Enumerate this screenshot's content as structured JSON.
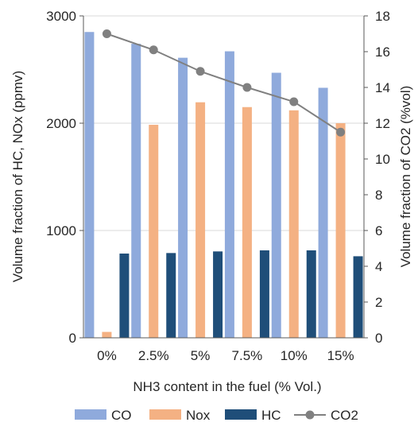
{
  "chart_data": {
    "type": "bar",
    "categories": [
      "0%",
      "2.5%",
      "5%",
      "7.5%",
      "10%",
      "15%"
    ],
    "series": [
      {
        "name": "CO",
        "type": "bar",
        "axis": "left",
        "color": "#8faadc",
        "values": [
          2850,
          2740,
          2610,
          2670,
          2470,
          2330
        ]
      },
      {
        "name": "Nox",
        "type": "bar",
        "axis": "left",
        "color": "#f4b183",
        "values": [
          55,
          1985,
          2195,
          2150,
          2120,
          2000
        ]
      },
      {
        "name": "HC",
        "type": "bar",
        "axis": "left",
        "color": "#1f4e79",
        "values": [
          785,
          790,
          805,
          815,
          815,
          760
        ]
      },
      {
        "name": "CO2",
        "type": "line",
        "axis": "right",
        "color": "#808080",
        "marker": "circle",
        "values": [
          17.0,
          16.1,
          14.9,
          14.0,
          13.2,
          11.5
        ]
      }
    ],
    "xlabel": "NH3 content in the fuel (% Vol.)",
    "ylabel": "Volume fraction of HC, NOx (ppmv)",
    "y2label": "Volume fraction of CO2 (%vol)",
    "ylim": [
      0,
      3000
    ],
    "y2lim": [
      0,
      18
    ],
    "yticks": [
      "0",
      "1000",
      "2000",
      "3000"
    ],
    "y2ticks": [
      "0",
      "2",
      "4",
      "6",
      "8",
      "10",
      "12",
      "14",
      "16",
      "18"
    ],
    "grid": true,
    "legend_position": "bottom"
  }
}
